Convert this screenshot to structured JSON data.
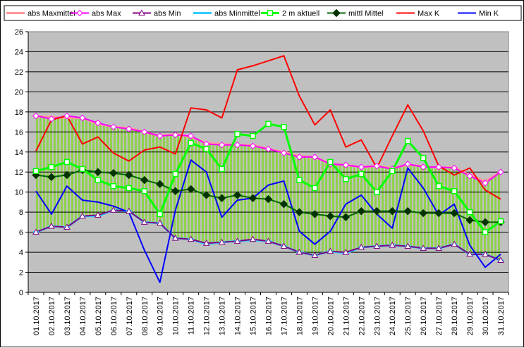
{
  "chart_data": {
    "type": "line",
    "title": "",
    "xlabel": "",
    "ylabel": "",
    "ylim": [
      0,
      26
    ],
    "yticks": [
      0,
      2,
      4,
      6,
      8,
      10,
      12,
      14,
      16,
      18,
      20,
      22,
      24,
      26
    ],
    "grid": "horizontal",
    "legend_position": "top",
    "plot_background": "#c0c0c0",
    "band_fill": "#8fd24c",
    "categories": [
      "01.10.2017",
      "02.10.2017",
      "03.10.2017",
      "04.10.2017",
      "05.10.2017",
      "06.10.2017",
      "07.10.2017",
      "08.10.2017",
      "09.10.2017",
      "10.10.2017",
      "11.10.2017",
      "12.10.2017",
      "13.10.2017",
      "14.10.2017",
      "15.10.2017",
      "16.10.2017",
      "17.10.2017",
      "18.10.2017",
      "19.10.2017",
      "20.10.2017",
      "21.10.2017",
      "22.10.2017",
      "23.10.2017",
      "24.10.2017",
      "25.10.2017",
      "26.10.2017",
      "27.10.2017",
      "28.10.2017",
      "29.10.2017",
      "30.10.2017",
      "31.10.2017"
    ],
    "series": [
      {
        "name": "abs Maxmittel",
        "color": "#ff9999",
        "marker": "dash",
        "values": [
          17.6,
          17.5,
          17.4,
          17.4,
          16.8,
          16.5,
          16.4,
          16.0,
          15.6,
          15.8,
          15.5,
          14.9,
          14.8,
          14.7,
          14.7,
          14.3,
          14.0,
          13.6,
          13.5,
          12.8,
          12.7,
          12.5,
          12.6,
          12.4,
          12.7,
          12.6,
          12.4,
          12.5,
          11.7,
          11.1,
          12.0
        ]
      },
      {
        "name": "abs Max",
        "color": "#ff00ff",
        "marker": "diamond",
        "values": [
          17.6,
          17.3,
          17.6,
          17.4,
          16.9,
          16.5,
          16.3,
          16.0,
          15.6,
          15.7,
          15.6,
          14.8,
          14.7,
          14.7,
          14.6,
          14.3,
          13.9,
          13.5,
          13.5,
          12.8,
          12.7,
          12.5,
          12.6,
          12.3,
          12.8,
          12.5,
          12.5,
          12.4,
          11.6,
          10.9,
          12.0
        ]
      },
      {
        "name": "abs Min",
        "color": "#800080",
        "marker": "triangle",
        "values": [
          6.0,
          6.6,
          6.5,
          7.6,
          7.7,
          8.2,
          8.1,
          7.0,
          6.9,
          5.4,
          5.3,
          4.9,
          5.0,
          5.1,
          5.3,
          5.1,
          4.6,
          4.0,
          3.7,
          4.1,
          4.0,
          4.5,
          4.6,
          4.7,
          4.6,
          4.4,
          4.4,
          4.8,
          3.8,
          3.8,
          3.2
        ]
      },
      {
        "name": "abs Minmittel",
        "color": "#33ccff",
        "marker": "dash",
        "values": [
          6.0,
          6.6,
          6.5,
          7.6,
          7.6,
          8.2,
          8.1,
          7.0,
          6.9,
          5.4,
          5.3,
          4.8,
          5.0,
          5.1,
          5.2,
          5.1,
          4.6,
          4.0,
          3.7,
          4.1,
          3.9,
          4.5,
          4.6,
          4.7,
          4.6,
          4.4,
          4.4,
          4.8,
          3.8,
          3.8,
          3.2
        ]
      },
      {
        "name": "2 m aktuell",
        "color": "#00ff00",
        "marker": "square",
        "values": [
          12.1,
          12.5,
          13.0,
          12.3,
          11.2,
          10.6,
          10.4,
          10.1,
          7.8,
          11.8,
          14.9,
          14.3,
          12.3,
          15.8,
          15.6,
          16.8,
          16.5,
          11.2,
          10.4,
          13.0,
          11.3,
          11.8,
          10.0,
          12.1,
          15.1,
          13.4,
          10.6,
          10.1,
          8.0,
          6.0,
          7.1
        ]
      },
      {
        "name": "mittl Mittel",
        "color": "#006600",
        "marker": "filled-diamond",
        "values": [
          11.7,
          11.5,
          11.7,
          12.2,
          12.0,
          11.9,
          11.7,
          11.2,
          10.8,
          10.1,
          10.3,
          9.7,
          9.4,
          9.7,
          9.4,
          9.3,
          8.8,
          8.0,
          7.8,
          7.6,
          7.5,
          8.1,
          8.1,
          8.1,
          8.1,
          7.9,
          7.9,
          7.9,
          7.2,
          7.0,
          7.0
        ]
      },
      {
        "name": "Max K",
        "color": "#ff0000",
        "marker": "none",
        "values": [
          14.1,
          17.2,
          17.6,
          14.8,
          15.5,
          13.9,
          13.1,
          14.2,
          14.5,
          13.8,
          18.4,
          18.2,
          17.4,
          22.2,
          22.6,
          23.1,
          23.6,
          19.6,
          16.7,
          18.2,
          14.5,
          15.2,
          12.4,
          15.6,
          18.7,
          16.1,
          12.6,
          11.7,
          12.4,
          10.2,
          9.3
        ]
      },
      {
        "name": "Min K",
        "color": "#0000ff",
        "marker": "none",
        "values": [
          10.1,
          7.8,
          10.6,
          9.2,
          9.0,
          8.6,
          8.0,
          4.2,
          1.0,
          8.2,
          13.2,
          12.0,
          7.5,
          9.2,
          9.4,
          10.7,
          11.1,
          6.1,
          4.8,
          6.1,
          8.8,
          9.7,
          7.8,
          6.4,
          12.4,
          10.4,
          7.7,
          8.8,
          4.7,
          2.5,
          3.8
        ]
      }
    ]
  }
}
